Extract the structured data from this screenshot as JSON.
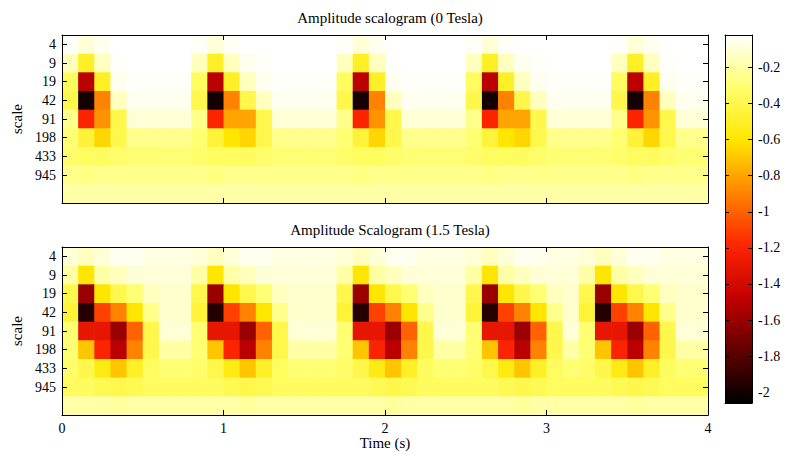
{
  "chart_data": [
    {
      "type": "heatmap",
      "title": "Amplitude scalogram (0 Tesla)",
      "ylabel": "scale",
      "xlim": [
        0,
        4
      ],
      "xticks": [
        0,
        1,
        2,
        3,
        4
      ],
      "tick_labels": "y",
      "scales": [
        4,
        9,
        19,
        42,
        91,
        198,
        433,
        945,
        null
      ],
      "time_edges": [
        0,
        0.1,
        0.2,
        0.3,
        0.4,
        0.5,
        0.6,
        0.7,
        0.8,
        0.9,
        1,
        1.1,
        1.2,
        1.3,
        1.4,
        1.5,
        1.6,
        1.7,
        1.8,
        1.9,
        2,
        2.1,
        2.2,
        2.3,
        2.4,
        2.5,
        2.6,
        2.7,
        2.8,
        2.9,
        3,
        3.1,
        3.2,
        3.3,
        3.4,
        3.5,
        3.6,
        3.7,
        3.8,
        3.9,
        4
      ],
      "cells": [
        [
          -0.03,
          -0.1,
          -0.05,
          -0.02,
          -0.02,
          -0.02,
          -0.02,
          -0.02,
          -0.03,
          -0.1,
          -0.04,
          -0.02,
          -0.02,
          -0.02,
          -0.02,
          -0.02,
          -0.02,
          -0.03,
          -0.1,
          -0.05,
          -0.02,
          -0.02,
          -0.02,
          -0.02,
          -0.02,
          -0.03,
          -0.1,
          -0.04,
          -0.02,
          -0.02,
          -0.02,
          -0.02,
          -0.02,
          -0.02,
          -0.03,
          -0.1,
          -0.05,
          -0.02,
          -0.02,
          -0.02
        ],
        [
          -0.15,
          -0.5,
          -0.15,
          -0.03,
          -0.02,
          -0.02,
          -0.02,
          -0.02,
          -0.15,
          -0.5,
          -0.15,
          -0.05,
          -0.03,
          -0.02,
          -0.02,
          -0.02,
          -0.02,
          -0.15,
          -0.5,
          -0.15,
          -0.03,
          -0.02,
          -0.02,
          -0.02,
          -0.02,
          -0.15,
          -0.5,
          -0.15,
          -0.05,
          -0.03,
          -0.02,
          -0.02,
          -0.02,
          -0.02,
          -0.15,
          -0.5,
          -0.15,
          -0.03,
          -0.02,
          -0.02
        ],
        [
          -0.35,
          -1.5,
          -0.5,
          -0.05,
          -0.03,
          -0.03,
          -0.03,
          -0.03,
          -0.35,
          -1.5,
          -0.5,
          -0.15,
          -0.05,
          -0.03,
          -0.03,
          -0.03,
          -0.03,
          -0.35,
          -1.5,
          -0.5,
          -0.05,
          -0.03,
          -0.03,
          -0.03,
          -0.03,
          -0.35,
          -1.5,
          -0.5,
          -0.15,
          -0.05,
          -0.03,
          -0.03,
          -0.03,
          -0.03,
          -0.35,
          -1.5,
          -0.5,
          -0.05,
          -0.03,
          -0.03
        ],
        [
          -0.4,
          -2,
          -0.9,
          -0.15,
          -0.05,
          -0.05,
          -0.05,
          -0.05,
          -0.4,
          -2,
          -0.9,
          -0.4,
          -0.15,
          -0.05,
          -0.05,
          -0.05,
          -0.05,
          -0.4,
          -2,
          -0.9,
          -0.15,
          -0.05,
          -0.05,
          -0.05,
          -0.05,
          -0.4,
          -2,
          -0.9,
          -0.4,
          -0.15,
          -0.05,
          -0.05,
          -0.05,
          -0.05,
          -0.4,
          -2,
          -0.9,
          -0.15,
          -0.05,
          -0.05
        ],
        [
          -0.25,
          -1.2,
          -0.85,
          -0.4,
          -0.1,
          -0.1,
          -0.1,
          -0.1,
          -0.25,
          -1.2,
          -0.8,
          -0.8,
          -0.4,
          -0.1,
          -0.1,
          -0.1,
          -0.1,
          -0.25,
          -1.2,
          -0.85,
          -0.4,
          -0.1,
          -0.1,
          -0.1,
          -0.1,
          -0.25,
          -1.2,
          -0.8,
          -0.8,
          -0.4,
          -0.1,
          -0.1,
          -0.1,
          -0.1,
          -0.25,
          -1.2,
          -0.85,
          -0.4,
          -0.1,
          -0.1
        ],
        [
          -0.3,
          -0.45,
          -0.65,
          -0.4,
          -0.25,
          -0.25,
          -0.25,
          -0.25,
          -0.3,
          -0.45,
          -0.6,
          -0.65,
          -0.4,
          -0.25,
          -0.25,
          -0.25,
          -0.25,
          -0.3,
          -0.45,
          -0.65,
          -0.4,
          -0.25,
          -0.25,
          -0.25,
          -0.25,
          -0.3,
          -0.45,
          -0.6,
          -0.65,
          -0.4,
          -0.25,
          -0.25,
          -0.25,
          -0.25,
          -0.3,
          -0.45,
          -0.65,
          -0.4,
          -0.25,
          -0.25
        ],
        [
          -0.32,
          -0.35,
          -0.35,
          -0.32,
          -0.3,
          -0.3,
          -0.3,
          -0.3,
          -0.32,
          -0.35,
          -0.35,
          -0.35,
          -0.32,
          -0.3,
          -0.3,
          -0.3,
          -0.3,
          -0.32,
          -0.35,
          -0.35,
          -0.32,
          -0.3,
          -0.3,
          -0.3,
          -0.3,
          -0.32,
          -0.35,
          -0.35,
          -0.35,
          -0.32,
          -0.3,
          -0.3,
          -0.3,
          -0.3,
          -0.32,
          -0.35,
          -0.35,
          -0.32,
          -0.3,
          -0.3
        ],
        [
          -0.25,
          -0.27,
          -0.25,
          -0.25,
          -0.25,
          -0.25,
          -0.25,
          -0.25,
          -0.25,
          -0.27,
          -0.25,
          -0.25,
          -0.25,
          -0.25,
          -0.25,
          -0.25,
          -0.25,
          -0.25,
          -0.27,
          -0.25,
          -0.25,
          -0.25,
          -0.25,
          -0.25,
          -0.25,
          -0.25,
          -0.27,
          -0.25,
          -0.25,
          -0.25,
          -0.25,
          -0.25,
          -0.25,
          -0.25,
          -0.25,
          -0.27,
          -0.25,
          -0.25,
          -0.25,
          -0.25
        ],
        [
          -0.2,
          -0.2,
          -0.2,
          -0.2,
          -0.2,
          -0.2,
          -0.2,
          -0.2,
          -0.2,
          -0.2,
          -0.2,
          -0.2,
          -0.2,
          -0.2,
          -0.2,
          -0.2,
          -0.2,
          -0.2,
          -0.2,
          -0.2,
          -0.2,
          -0.2,
          -0.2,
          -0.2,
          -0.2,
          -0.2,
          -0.2,
          -0.2,
          -0.2,
          -0.2,
          -0.2,
          -0.2,
          -0.2,
          -0.2,
          -0.2,
          -0.2,
          -0.2,
          -0.2,
          -0.2,
          -0.2
        ]
      ],
      "colorbar": {
        "range": [
          -2.06,
          -0.02
        ],
        "ticks": [
          -2,
          -1.8,
          -1.6,
          -1.4,
          -1.2,
          -1,
          -0.8,
          -0.6,
          -0.4,
          -0.2
        ]
      }
    },
    {
      "type": "heatmap",
      "title": "Amplitude Scalogram (1.5 Tesla)",
      "xlabel": "Time (s)",
      "ylabel": "scale",
      "xlim": [
        0,
        4
      ],
      "xticks": [
        0,
        1,
        2,
        3,
        4
      ],
      "scales": [
        4,
        9,
        19,
        42,
        91,
        198,
        433,
        945,
        null
      ],
      "time_edges": [
        0,
        0.1,
        0.2,
        0.3,
        0.4,
        0.5,
        0.6,
        0.7,
        0.8,
        0.9,
        1,
        1.1,
        1.2,
        1.3,
        1.4,
        1.5,
        1.6,
        1.7,
        1.8,
        1.9,
        2,
        2.1,
        2.2,
        2.3,
        2.4,
        2.5,
        2.6,
        2.7,
        2.8,
        2.9,
        3,
        3.1,
        3.2,
        3.3,
        3.4,
        3.5,
        3.6,
        3.7,
        3.8,
        3.9,
        4
      ],
      "cells": [
        [
          -0.1,
          -0.15,
          -0.1,
          -0.05,
          -0.05,
          -0.08,
          -0.08,
          -0.08,
          -0.1,
          -0.15,
          -0.1,
          -0.05,
          -0.05,
          -0.08,
          -0.08,
          -0.08,
          -0.08,
          -0.1,
          -0.15,
          -0.1,
          -0.05,
          -0.05,
          -0.08,
          -0.08,
          -0.08,
          -0.1,
          -0.15,
          -0.1,
          -0.05,
          -0.05,
          -0.08,
          -0.08,
          -0.1,
          -0.15,
          -0.1,
          -0.05,
          -0.05,
          -0.08,
          -0.08,
          -0.08
        ],
        [
          -0.2,
          -0.6,
          -0.2,
          -0.15,
          -0.1,
          -0.1,
          -0.1,
          -0.1,
          -0.2,
          -0.6,
          -0.2,
          -0.15,
          -0.1,
          -0.1,
          -0.1,
          -0.1,
          -0.1,
          -0.2,
          -0.6,
          -0.2,
          -0.15,
          -0.1,
          -0.1,
          -0.1,
          -0.1,
          -0.2,
          -0.6,
          -0.2,
          -0.15,
          -0.1,
          -0.1,
          -0.1,
          -0.2,
          -0.6,
          -0.2,
          -0.15,
          -0.1,
          -0.1,
          -0.1,
          -0.1
        ],
        [
          -0.4,
          -1.6,
          -0.6,
          -0.4,
          -0.3,
          -0.15,
          -0.12,
          -0.12,
          -0.4,
          -1.6,
          -0.6,
          -0.4,
          -0.3,
          -0.15,
          -0.12,
          -0.12,
          -0.12,
          -0.4,
          -1.6,
          -0.6,
          -0.4,
          -0.3,
          -0.15,
          -0.12,
          -0.12,
          -0.4,
          -1.6,
          -0.6,
          -0.4,
          -0.3,
          -0.15,
          -0.12,
          -0.4,
          -1.6,
          -0.6,
          -0.4,
          -0.3,
          -0.15,
          -0.12,
          -0.12
        ],
        [
          -0.45,
          -1.95,
          -1.1,
          -0.9,
          -0.6,
          -0.25,
          -0.12,
          -0.12,
          -0.45,
          -1.95,
          -1.1,
          -0.9,
          -0.6,
          -0.25,
          -0.12,
          -0.12,
          -0.12,
          -0.45,
          -1.95,
          -1.1,
          -0.9,
          -0.6,
          -0.25,
          -0.12,
          -0.12,
          -0.45,
          -1.95,
          -1.1,
          -0.9,
          -0.6,
          -0.25,
          -0.12,
          -0.45,
          -1.95,
          -1.1,
          -0.9,
          -0.6,
          -0.25,
          -0.12,
          -0.12
        ],
        [
          -0.3,
          -1.3,
          -1.3,
          -1.6,
          -1,
          -0.4,
          -0.1,
          -0.1,
          -0.3,
          -1.3,
          -1.3,
          -1.6,
          -1,
          -0.4,
          -0.1,
          -0.1,
          -0.1,
          -0.3,
          -1.3,
          -1.3,
          -1.6,
          -1,
          -0.4,
          -0.1,
          -0.1,
          -0.3,
          -1.3,
          -1.3,
          -1.6,
          -1,
          -0.4,
          -0.1,
          -0.3,
          -1.3,
          -1.3,
          -1.6,
          -1,
          -0.4,
          -0.1,
          -0.1
        ],
        [
          -0.3,
          -0.7,
          -1.2,
          -1.5,
          -0.9,
          -0.4,
          -0.2,
          -0.2,
          -0.3,
          -0.7,
          -1.2,
          -1.5,
          -0.9,
          -0.4,
          -0.2,
          -0.2,
          -0.2,
          -0.3,
          -0.7,
          -1.2,
          -1.5,
          -0.9,
          -0.4,
          -0.2,
          -0.2,
          -0.3,
          -0.7,
          -1.2,
          -1.5,
          -0.9,
          -0.4,
          -0.2,
          -0.3,
          -0.7,
          -1.2,
          -1.5,
          -0.9,
          -0.4,
          -0.2,
          -0.2
        ],
        [
          -0.32,
          -0.4,
          -0.55,
          -0.7,
          -0.5,
          -0.35,
          -0.3,
          -0.3,
          -0.32,
          -0.4,
          -0.55,
          -0.7,
          -0.5,
          -0.35,
          -0.3,
          -0.3,
          -0.3,
          -0.32,
          -0.4,
          -0.55,
          -0.7,
          -0.5,
          -0.35,
          -0.3,
          -0.3,
          -0.32,
          -0.4,
          -0.55,
          -0.7,
          -0.5,
          -0.35,
          -0.3,
          -0.32,
          -0.4,
          -0.55,
          -0.7,
          -0.5,
          -0.35,
          -0.3,
          -0.3
        ],
        [
          -0.35,
          -0.35,
          -0.38,
          -0.4,
          -0.38,
          -0.35,
          -0.35,
          -0.35,
          -0.35,
          -0.35,
          -0.38,
          -0.4,
          -0.38,
          -0.35,
          -0.35,
          -0.35,
          -0.35,
          -0.35,
          -0.35,
          -0.38,
          -0.4,
          -0.38,
          -0.35,
          -0.35,
          -0.35,
          -0.35,
          -0.35,
          -0.38,
          -0.4,
          -0.38,
          -0.35,
          -0.35,
          -0.35,
          -0.35,
          -0.38,
          -0.4,
          -0.38,
          -0.35,
          -0.35,
          -0.35
        ],
        [
          -0.2,
          -0.2,
          -0.2,
          -0.22,
          -0.2,
          -0.2,
          -0.2,
          -0.2,
          -0.2,
          -0.2,
          -0.2,
          -0.22,
          -0.2,
          -0.2,
          -0.2,
          -0.2,
          -0.2,
          -0.2,
          -0.2,
          -0.2,
          -0.22,
          -0.2,
          -0.2,
          -0.2,
          -0.2,
          -0.2,
          -0.2,
          -0.2,
          -0.22,
          -0.2,
          -0.2,
          -0.2,
          -0.2,
          -0.2,
          -0.2,
          -0.22,
          -0.2,
          -0.2,
          -0.2,
          -0.2
        ]
      ]
    }
  ]
}
